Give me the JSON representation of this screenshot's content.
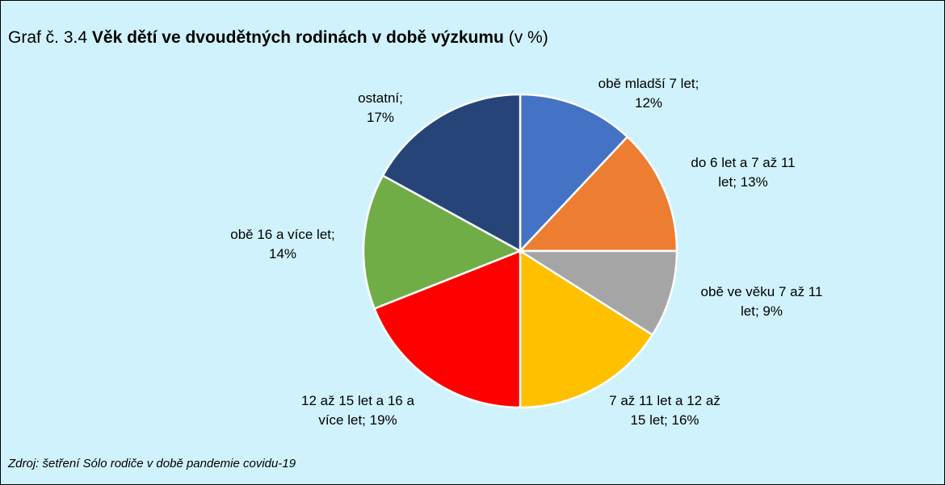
{
  "title": {
    "number": "Graf č. 3.4",
    "text": "Věk dětí ve dvoudětných rodinách v době výzkumu",
    "unit": "(v %)"
  },
  "chart_data": {
    "type": "pie",
    "categories": [
      "obě mladší 7 let;",
      "do 6 let a 7 až 11 let;",
      "obě ve věku 7 až 11 let;",
      "7 až 11 let a 12 až 15 let;",
      "12 až 15 let a 16 a více let;",
      "obě 16 a více let;",
      "ostatní;"
    ],
    "values": [
      12,
      13,
      9,
      16,
      19,
      14,
      17
    ],
    "value_labels": [
      "12%",
      "13%",
      "9%",
      "16%",
      "19%",
      "14%",
      "17%"
    ],
    "colors": [
      "#4472c4",
      "#ed7d31",
      "#a5a5a5",
      "#ffc000",
      "#ff0000",
      "#70ad47",
      "#264478"
    ]
  },
  "source": "Zdroj: šetření Sólo rodiče v době pandemie covidu-19"
}
